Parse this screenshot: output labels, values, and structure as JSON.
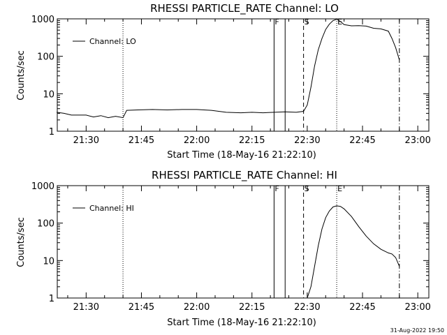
{
  "footer": {
    "timestamp": "31-Aug-2022 19:50"
  },
  "chart_data": [
    {
      "type": "line",
      "title": "RHESSI PARTICLE_RATE Channel: LO",
      "xlabel": "Start Time (18-May-16 21:22:10)",
      "ylabel": "Counts/sec",
      "ylog": true,
      "xlim_minutes": [
        21.37,
        23.03
      ],
      "ylim": [
        1,
        1000
      ],
      "xticks": [
        "21:30",
        "21:45",
        "22:00",
        "22:15",
        "22:30",
        "22:45",
        "23:00"
      ],
      "yticks": [
        "1",
        "10",
        "100",
        "1000"
      ],
      "legend": {
        "placement": "top-left",
        "entries": [
          "Channel: LO"
        ]
      },
      "markers": [
        {
          "label": "",
          "time": "21:40",
          "style": "dotted"
        },
        {
          "label": "F",
          "time": "22:21",
          "style": "solid"
        },
        {
          "label": "",
          "time": "22:24",
          "style": "solid"
        },
        {
          "label": "S",
          "time": "22:29",
          "style": "dashed"
        },
        {
          "label": "E",
          "time": "22:38",
          "style": "dotted"
        },
        {
          "label": "",
          "time": "22:55",
          "style": "dashdot"
        }
      ],
      "series": [
        {
          "name": "Channel: LO",
          "x": [
            "21:22",
            "21:24",
            "21:26",
            "21:28",
            "21:30",
            "21:32",
            "21:34",
            "21:36",
            "21:38",
            "21:40",
            "21:41",
            "21:44",
            "21:48",
            "21:52",
            "21:56",
            "22:00",
            "22:04",
            "22:08",
            "22:12",
            "22:15",
            "22:18",
            "22:21",
            "22:24",
            "22:27",
            "22:29",
            "22:30",
            "22:31",
            "22:32",
            "22:33",
            "22:34",
            "22:35",
            "22:36",
            "22:37",
            "22:38",
            "22:39",
            "22:40",
            "22:42",
            "22:44",
            "22:46",
            "22:48",
            "22:50",
            "22:52",
            "22:53",
            "22:54",
            "22:55"
          ],
          "y": [
            3.2,
            3.0,
            2.7,
            2.7,
            2.7,
            2.4,
            2.6,
            2.3,
            2.5,
            2.3,
            3.6,
            3.7,
            3.8,
            3.7,
            3.8,
            3.8,
            3.6,
            3.2,
            3.1,
            3.2,
            3.1,
            3.2,
            3.3,
            3.2,
            3.4,
            5,
            15,
            55,
            150,
            300,
            520,
            720,
            900,
            980,
            850,
            700,
            650,
            660,
            640,
            560,
            540,
            470,
            300,
            170,
            80
          ]
        }
      ]
    },
    {
      "type": "line",
      "title": "RHESSI PARTICLE_RATE Channel: HI",
      "xlabel": "Start Time (18-May-16 21:22:10)",
      "ylabel": "Counts/sec",
      "ylog": true,
      "xlim_minutes": [
        21.37,
        23.03
      ],
      "ylim": [
        1,
        1000
      ],
      "xticks": [
        "21:30",
        "21:45",
        "22:00",
        "22:15",
        "22:30",
        "22:45",
        "23:00"
      ],
      "yticks": [
        "1",
        "10",
        "100",
        "1000"
      ],
      "legend": {
        "placement": "top-left",
        "entries": [
          "Channel: HI"
        ]
      },
      "markers": [
        {
          "label": "",
          "time": "21:40",
          "style": "dotted"
        },
        {
          "label": "F",
          "time": "22:21",
          "style": "solid"
        },
        {
          "label": "",
          "time": "22:24",
          "style": "solid"
        },
        {
          "label": "S",
          "time": "22:29",
          "style": "dashed"
        },
        {
          "label": "E",
          "time": "22:38",
          "style": "dotted"
        },
        {
          "label": "",
          "time": "22:55",
          "style": "dashdot"
        }
      ],
      "series": [
        {
          "name": "Channel: HI",
          "x": [
            "22:30",
            "22:31",
            "22:32",
            "22:33",
            "22:34",
            "22:35",
            "22:36",
            "22:37",
            "22:38",
            "22:39",
            "22:40",
            "22:42",
            "22:44",
            "22:46",
            "22:48",
            "22:50",
            "22:52",
            "22:53",
            "22:54",
            "22:55"
          ],
          "y": [
            1.0,
            2.0,
            7,
            25,
            70,
            140,
            210,
            270,
            290,
            280,
            240,
            150,
            80,
            45,
            28,
            20,
            16,
            15,
            12,
            7
          ]
        }
      ]
    }
  ]
}
